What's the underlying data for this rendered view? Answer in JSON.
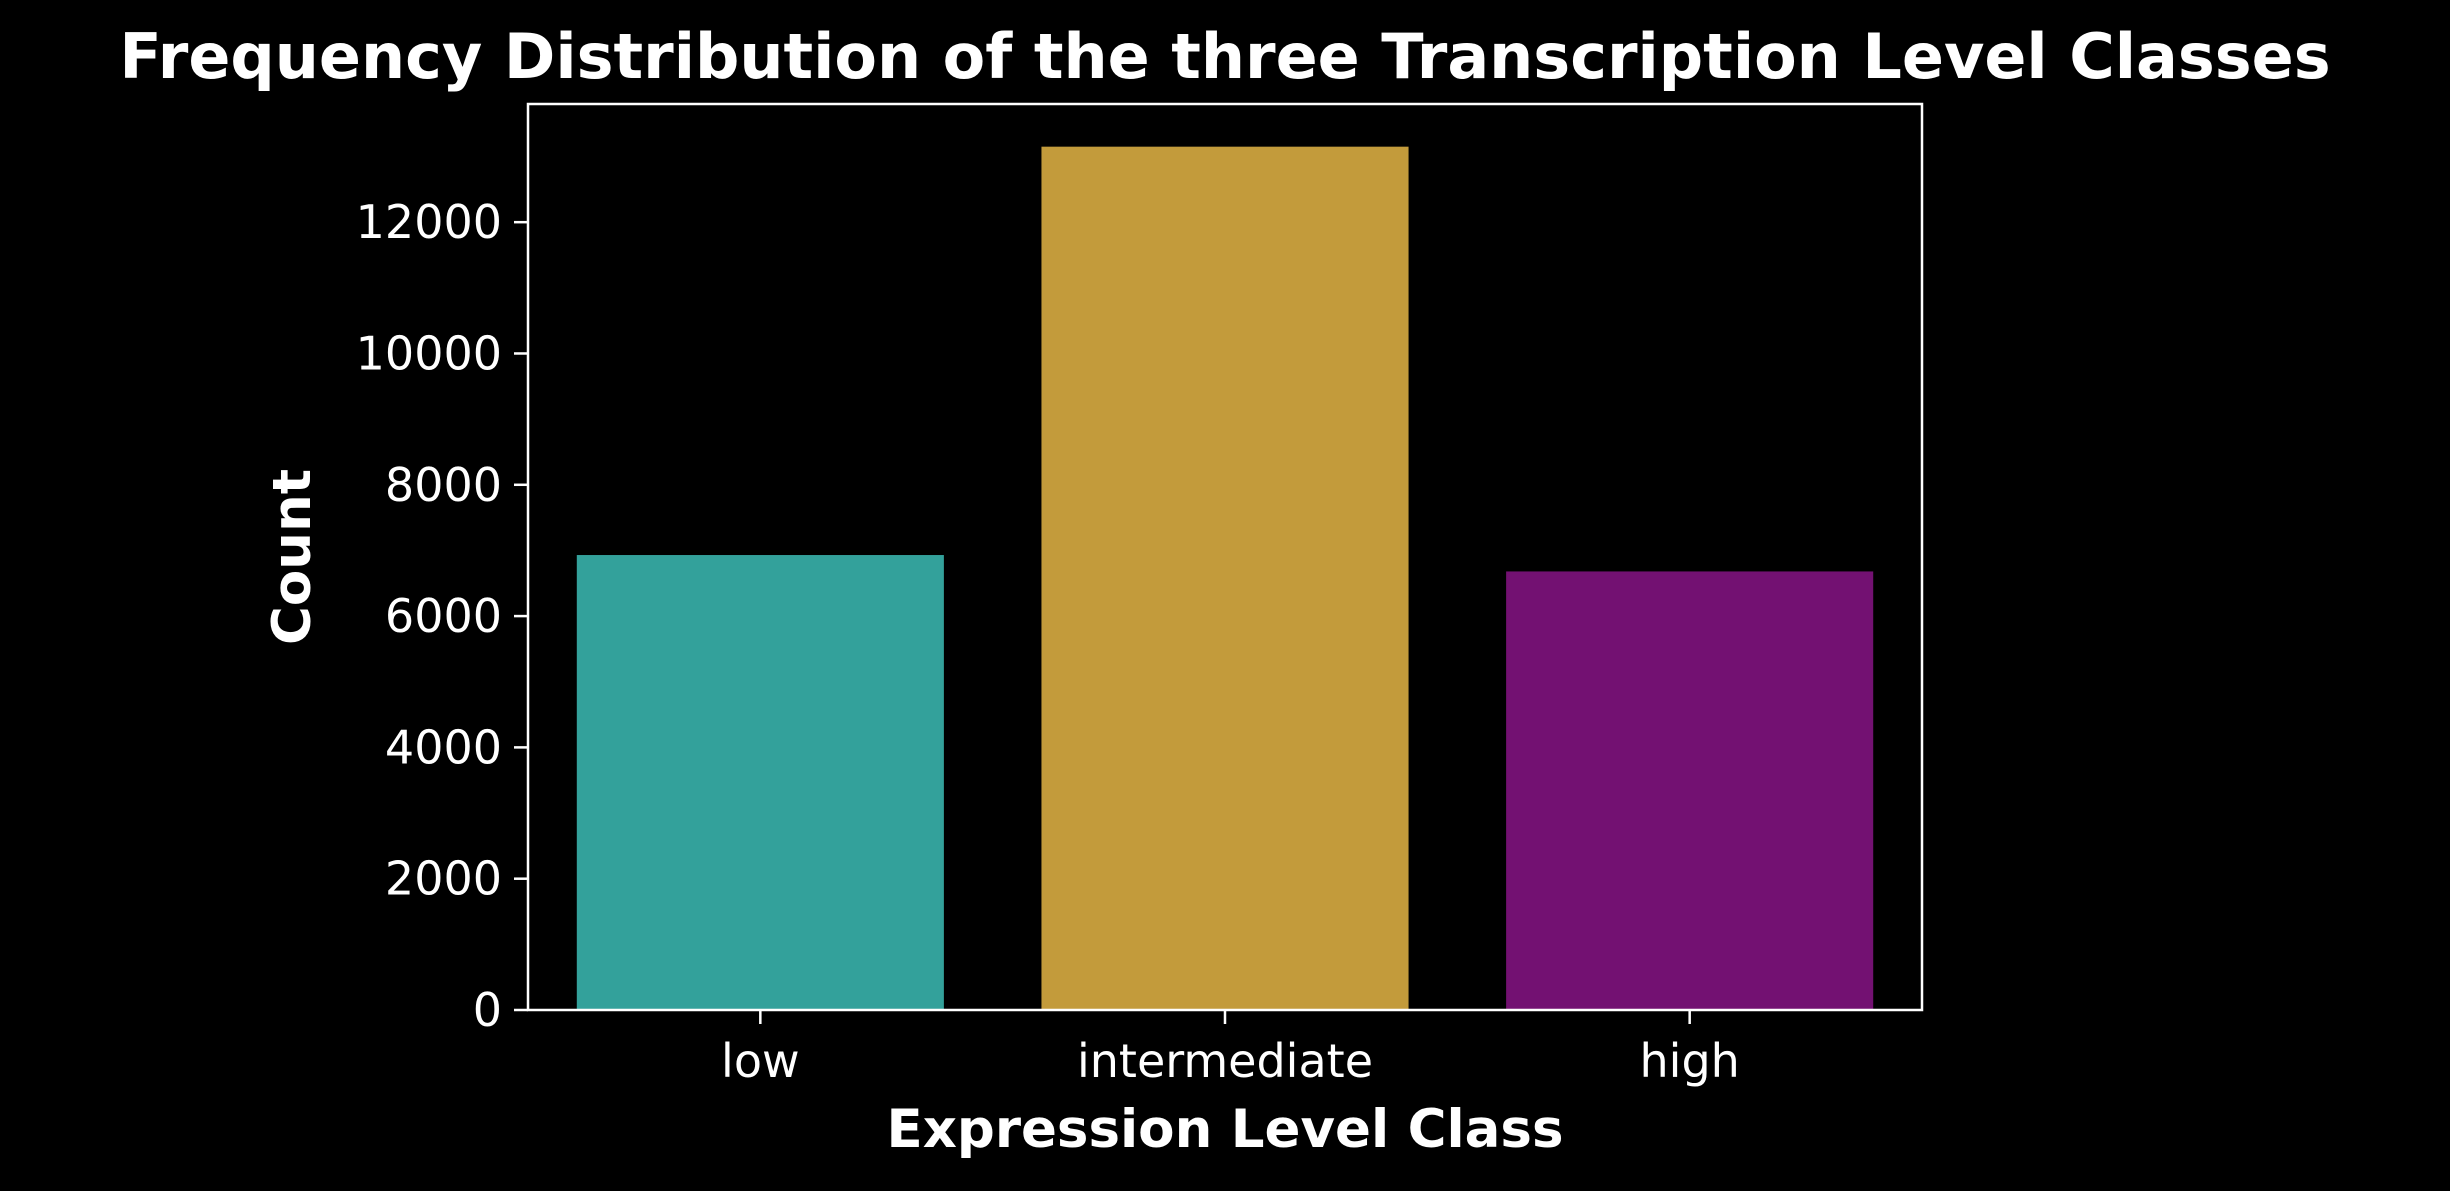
{
  "chart_data": {
    "type": "bar",
    "title": "Frequency Distribution of the three Transcription Level Classes",
    "xlabel": "Expression Level Class",
    "ylabel": "Count",
    "categories": [
      "low",
      "intermediate",
      "high"
    ],
    "values": [
      6930,
      13150,
      6680
    ],
    "bar_colors": [
      "#33a19b",
      "#c39b3b",
      "#731172"
    ],
    "ylim": [
      0,
      13800
    ],
    "yticks": [
      0,
      2000,
      4000,
      6000,
      8000,
      10000,
      12000
    ],
    "grid": false,
    "legend": "none",
    "background": "#000000",
    "foreground": "#ffffff"
  }
}
